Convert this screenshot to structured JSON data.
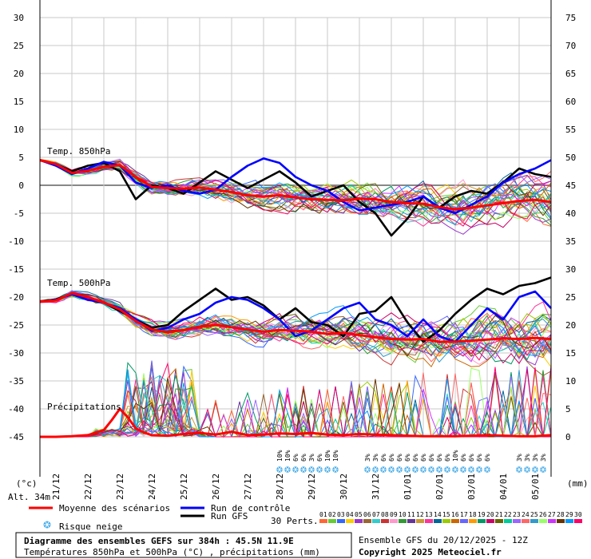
{
  "chart_data": {
    "type": "line",
    "y_left_ticks": [
      30,
      25,
      20,
      15,
      10,
      5,
      0,
      -5,
      -10,
      -15,
      -20,
      -25,
      -30,
      -35,
      -40,
      -45
    ],
    "y_right_ticks": [
      75,
      70,
      65,
      60,
      55,
      50,
      45,
      40,
      35,
      30,
      25,
      20,
      15,
      10,
      5,
      0
    ],
    "ylim_left": [
      -45,
      30
    ],
    "ylim_right": [
      0,
      75
    ],
    "x_date_labels": [
      "21/12",
      "22/12",
      "23/12",
      "24/12",
      "25/12",
      "26/12",
      "27/12",
      "28/12",
      "29/12",
      "30/12",
      "31/12",
      "01/01",
      "02/01",
      "03/01",
      "04/01",
      "05/01"
    ],
    "xlim_hours": [
      0,
      384
    ],
    "t850_label": "Temp. 850hPa",
    "t500_label": "Temp. 500hPa",
    "precip_label": "Précipitations",
    "y_unit_left": "(°c)",
    "y_unit_right": "(mm)",
    "altitude_label": "Alt. 34m",
    "series": [
      {
        "name": "Moyenne des scénarios",
        "field": "t850",
        "color": "#ff0000",
        "x_hours": [
          0,
          12,
          24,
          36,
          48,
          60,
          72,
          84,
          96,
          108,
          120,
          132,
          144,
          156,
          168,
          180,
          192,
          204,
          216,
          228,
          240,
          252,
          264,
          276,
          288,
          300,
          312,
          324,
          336,
          348,
          360,
          372,
          384
        ],
        "values": [
          4.5,
          3.8,
          2.2,
          2.6,
          3.3,
          3.6,
          1.5,
          -0.3,
          -0.5,
          -0.6,
          -0.4,
          -0.8,
          -1.2,
          -1.8,
          -2.0,
          -1.8,
          -2.2,
          -2.5,
          -2.6,
          -2.7,
          -2.4,
          -2.5,
          -3.0,
          -3.2,
          -3.3,
          -3.9,
          -4.3,
          -4.0,
          -3.6,
          -3.2,
          -2.8,
          -2.6,
          -3.0
        ]
      },
      {
        "name": "Moyenne des scénarios",
        "field": "t500",
        "color": "#ff0000",
        "x_hours": [
          0,
          12,
          24,
          36,
          48,
          60,
          72,
          84,
          96,
          108,
          120,
          132,
          144,
          156,
          168,
          180,
          192,
          204,
          216,
          228,
          240,
          252,
          264,
          276,
          288,
          300,
          312,
          324,
          336,
          348,
          360,
          372,
          384
        ],
        "values": [
          -20.8,
          -20.6,
          -19.3,
          -20.0,
          -21.0,
          -22.2,
          -24.3,
          -25.8,
          -26.3,
          -25.9,
          -25.3,
          -25.0,
          -25.4,
          -25.8,
          -26.2,
          -25.9,
          -26.0,
          -26.2,
          -26.6,
          -26.4,
          -26.8,
          -27.2,
          -27.5,
          -27.6,
          -27.5,
          -28.0,
          -28.0,
          -27.8,
          -27.6,
          -27.4,
          -27.5,
          -27.3,
          -27.5
        ]
      },
      {
        "name": "Moyenne des scénarios",
        "field": "precip_mm",
        "color": "#ff0000",
        "x_hours": [
          0,
          12,
          24,
          36,
          48,
          54,
          60,
          66,
          72,
          78,
          84,
          96,
          108,
          120,
          132,
          144,
          156,
          168,
          180,
          192,
          204,
          216,
          228,
          240,
          252,
          264,
          276,
          288,
          300,
          312,
          324,
          336,
          348,
          360,
          372,
          384
        ],
        "values": [
          0,
          0,
          0.1,
          0.3,
          1.2,
          3.0,
          5.0,
          3.5,
          1.5,
          0.8,
          0.3,
          0.2,
          0.5,
          0.7,
          0.4,
          0.9,
          0.3,
          0.4,
          0.6,
          0.5,
          0.7,
          0.4,
          0.3,
          0.5,
          0.4,
          0.3,
          0.2,
          0.1,
          0.1,
          0.1,
          0.2,
          0.3,
          0.2,
          0.1,
          0.1,
          0.3
        ]
      },
      {
        "name": "Run de contrôle",
        "field": "t850",
        "color": "#0000ff",
        "x_hours": [
          0,
          12,
          24,
          36,
          48,
          60,
          72,
          84,
          96,
          108,
          120,
          132,
          144,
          156,
          168,
          180,
          192,
          204,
          216,
          228,
          240,
          252,
          264,
          276,
          288,
          300,
          312,
          324,
          336,
          348,
          360,
          372,
          384
        ],
        "values": [
          4.5,
          3.5,
          2.0,
          3.0,
          4.2,
          3.5,
          0.5,
          -0.5,
          0.0,
          -1.0,
          -1.5,
          -0.8,
          1.5,
          3.5,
          4.8,
          4.0,
          1.5,
          0.0,
          -1.0,
          -3.0,
          -4.5,
          -4.0,
          -3.5,
          -3.0,
          -2.0,
          -4.0,
          -5.0,
          -3.5,
          -2.0,
          0.5,
          2.0,
          3.0,
          4.5
        ]
      },
      {
        "name": "Run de contrôle",
        "field": "t500",
        "color": "#0000ff",
        "x_hours": [
          0,
          12,
          24,
          36,
          48,
          60,
          72,
          84,
          96,
          108,
          120,
          132,
          144,
          156,
          168,
          180,
          192,
          204,
          216,
          228,
          240,
          252,
          264,
          276,
          288,
          300,
          312,
          324,
          336,
          348,
          360,
          372,
          384
        ],
        "values": [
          -20.8,
          -20.5,
          -19.5,
          -20.5,
          -21.0,
          -22.0,
          -24.0,
          -26.0,
          -25.5,
          -24.0,
          -23.0,
          -21.0,
          -20.0,
          -20.5,
          -22.0,
          -24.0,
          -27.0,
          -26.0,
          -24.0,
          -22.0,
          -21.0,
          -24.0,
          -25.0,
          -27.0,
          -24.0,
          -27.0,
          -28.0,
          -25.0,
          -22.0,
          -24.0,
          -20.0,
          -19.0,
          -22.0
        ]
      },
      {
        "name": "Run GFS",
        "field": "t850",
        "color": "#000000",
        "x_hours": [
          0,
          12,
          24,
          36,
          48,
          60,
          72,
          84,
          96,
          108,
          120,
          132,
          144,
          156,
          168,
          180,
          192,
          204,
          216,
          228,
          240,
          252,
          264,
          276,
          288,
          300,
          312,
          324,
          336,
          348,
          360,
          372,
          384
        ],
        "values": [
          4.5,
          3.8,
          2.5,
          3.5,
          4.0,
          2.5,
          -2.5,
          0.0,
          -0.5,
          -1.5,
          0.5,
          2.5,
          1.0,
          -0.5,
          1.0,
          2.5,
          0.5,
          -2.0,
          -1.0,
          0.0,
          -3.0,
          -5.0,
          -9.0,
          -6.0,
          -2.0,
          -4.0,
          -2.0,
          -1.0,
          -1.5,
          0.5,
          3.0,
          2.0,
          1.5
        ]
      },
      {
        "name": "Run GFS",
        "field": "t500",
        "color": "#000000",
        "x_hours": [
          0,
          12,
          24,
          36,
          48,
          60,
          72,
          84,
          96,
          108,
          120,
          132,
          144,
          156,
          168,
          180,
          192,
          204,
          216,
          228,
          240,
          252,
          264,
          276,
          288,
          300,
          312,
          324,
          336,
          348,
          360,
          372,
          384
        ],
        "values": [
          -20.8,
          -20.4,
          -19.5,
          -20.0,
          -21.0,
          -22.5,
          -24.0,
          -25.5,
          -25.0,
          -22.5,
          -20.5,
          -18.5,
          -20.5,
          -20.0,
          -21.5,
          -24.0,
          -22.0,
          -24.5,
          -25.0,
          -27.0,
          -23.0,
          -22.5,
          -20.0,
          -24.5,
          -28.0,
          -26.0,
          -23.0,
          -20.5,
          -18.5,
          -19.5,
          -18.0,
          -17.5,
          -16.5
        ]
      }
    ],
    "snow_risk_markers": [
      {
        "x_hours": 180,
        "pct": "10%"
      },
      {
        "x_hours": 186,
        "pct": "10%"
      },
      {
        "x_hours": 192,
        "pct": "6%"
      },
      {
        "x_hours": 198,
        "pct": "6%"
      },
      {
        "x_hours": 204,
        "pct": "3%"
      },
      {
        "x_hours": 210,
        "pct": "6%"
      },
      {
        "x_hours": 216,
        "pct": "10%"
      },
      {
        "x_hours": 222,
        "pct": "10%"
      },
      {
        "x_hours": 246,
        "pct": "3%"
      },
      {
        "x_hours": 252,
        "pct": "3%"
      },
      {
        "x_hours": 258,
        "pct": "6%"
      },
      {
        "x_hours": 264,
        "pct": "6%"
      },
      {
        "x_hours": 270,
        "pct": "6%"
      },
      {
        "x_hours": 276,
        "pct": "6%"
      },
      {
        "x_hours": 282,
        "pct": "6%"
      },
      {
        "x_hours": 288,
        "pct": "6%"
      },
      {
        "x_hours": 294,
        "pct": "6%"
      },
      {
        "x_hours": 300,
        "pct": "6%"
      },
      {
        "x_hours": 306,
        "pct": "6%"
      },
      {
        "x_hours": 312,
        "pct": "10%"
      },
      {
        "x_hours": 318,
        "pct": "6%"
      },
      {
        "x_hours": 324,
        "pct": "6%"
      },
      {
        "x_hours": 330,
        "pct": "6%"
      },
      {
        "x_hours": 336,
        "pct": "6%"
      },
      {
        "x_hours": 360,
        "pct": "3%"
      },
      {
        "x_hours": 366,
        "pct": "3%"
      },
      {
        "x_hours": 372,
        "pct": "3%"
      },
      {
        "x_hours": 378,
        "pct": "3%"
      }
    ],
    "perturbation_colors": [
      "#ff6633",
      "#66cc33",
      "#3366ff",
      "#ffcc00",
      "#9933cc",
      "#996633",
      "#33cccc",
      "#cc3333",
      "#ff99cc",
      "#339933",
      "#663399",
      "#cc9933",
      "#ff3399",
      "#006699",
      "#99cc00",
      "#cc6600",
      "#6666ff",
      "#ff9900",
      "#009966",
      "#cc0066",
      "#666600",
      "#00cc99",
      "#9966ff",
      "#ff6666",
      "#3399cc",
      "#99ff66",
      "#cc33ff",
      "#663300",
      "#0099ff",
      "#ff0066"
    ],
    "grid": true
  },
  "legend": {
    "mean": "Moyenne des scénarios",
    "control": "Run de contrôle",
    "gfs": "Run GFS",
    "snow": "Risque neige",
    "perts": "30 Perts.",
    "pert_numbers": [
      "01",
      "02",
      "03",
      "04",
      "05",
      "06",
      "07",
      "08",
      "09",
      "10",
      "11",
      "12",
      "13",
      "14",
      "15",
      "16",
      "17",
      "18",
      "19",
      "20",
      "21",
      "22",
      "23",
      "24",
      "25",
      "26",
      "27",
      "28",
      "29",
      "30"
    ]
  },
  "footer": {
    "title": "Diagramme des ensembles GEFS sur 384h : 45.5N 11.9E",
    "subtitle": "Températures 850hPa et 500hPa (°C) , précipitations (mm)",
    "ensemble": "Ensemble GFS du 20/12/2025 - 12Z",
    "copyright": "Copyright 2025 Meteociel.fr"
  }
}
